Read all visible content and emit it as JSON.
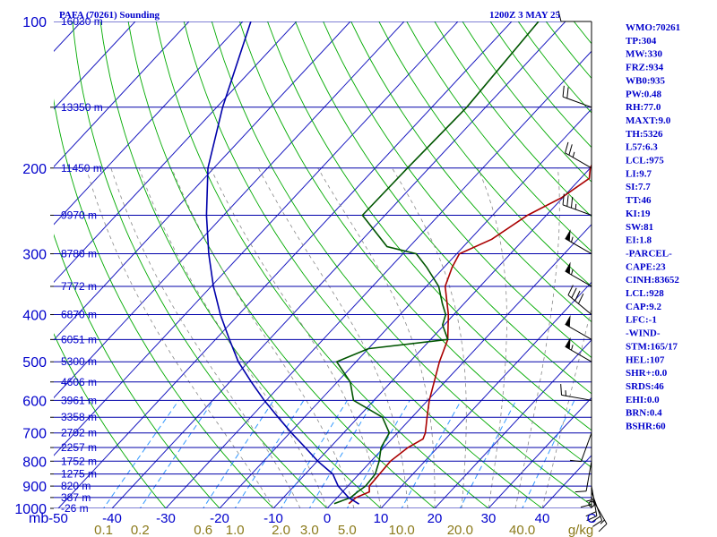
{
  "chart_data": {
    "type": "skew-t-log-p sounding",
    "title": "PAFA (70261) Sounding",
    "time": "1200Z  3 MAY 25",
    "y_axis_unit": "mb",
    "x_axis_unit": "C",
    "mixing_ratio_unit": "g/kg",
    "pressure_ticks": [
      100,
      200,
      300,
      400,
      500,
      600,
      700,
      800,
      900,
      1000
    ],
    "temperature_ticks": [
      -50,
      -40,
      -30,
      -20,
      -10,
      0,
      10,
      20,
      30,
      40
    ],
    "mixing_ratio_ticks": [
      0.1,
      0.2,
      0.6,
      1.0,
      2.0,
      3.0,
      5.0,
      10.0,
      20.0,
      40.0
    ],
    "mixing_ratio_labels": [
      "0.1",
      "0.2",
      "0.6",
      "1.0",
      "2.0",
      "3.0",
      "5.0",
      "10.0",
      "20.0",
      "40.0"
    ],
    "height_levels": [
      {
        "p": 100,
        "label": "16030 m"
      },
      {
        "p": 150,
        "label": "13350 m"
      },
      {
        "p": 200,
        "label": "11450 m"
      },
      {
        "p": 250,
        "label": "9970 m"
      },
      {
        "p": 300,
        "label": "8780 m"
      },
      {
        "p": 350,
        "label": "7772 m"
      },
      {
        "p": 400,
        "label": "6870 m"
      },
      {
        "p": 450,
        "label": "6051 m"
      },
      {
        "p": 500,
        "label": "5300 m"
      },
      {
        "p": 550,
        "label": "4606 m"
      },
      {
        "p": 600,
        "label": "3961 m"
      },
      {
        "p": 650,
        "label": "3358 m"
      },
      {
        "p": 700,
        "label": "2792 m"
      },
      {
        "p": 750,
        "label": "2257 m"
      },
      {
        "p": 800,
        "label": "1752 m"
      },
      {
        "p": 850,
        "label": "1275 m"
      },
      {
        "p": 900,
        "label": "820 m"
      },
      {
        "p": 950,
        "label": "387 m"
      },
      {
        "p": 1000,
        "label": "-26 m"
      }
    ],
    "series": [
      {
        "name": "Temperature",
        "color": "#aa0000",
        "points": [
          [
            978,
            3.2
          ],
          [
            950,
            3.5
          ],
          [
            925,
            5.0
          ],
          [
            900,
            4.0
          ],
          [
            850,
            3.8
          ],
          [
            800,
            3.6
          ],
          [
            750,
            4.5
          ],
          [
            720,
            5.8
          ],
          [
            700,
            5.2
          ],
          [
            650,
            2.8
          ],
          [
            600,
            0.3
          ],
          [
            550,
            -2.0
          ],
          [
            500,
            -4.5
          ],
          [
            450,
            -6.8
          ],
          [
            400,
            -11
          ],
          [
            350,
            -16.5
          ],
          [
            320,
            -18.5
          ],
          [
            300,
            -19.5
          ],
          [
            280,
            -16
          ],
          [
            250,
            -13.5
          ],
          [
            230,
            -10.2
          ],
          [
            210,
            -8.4
          ],
          [
            200,
            -10
          ],
          [
            180,
            -12
          ],
          [
            150,
            -13.5
          ],
          [
            130,
            -15
          ],
          [
            100,
            -19
          ]
        ]
      },
      {
        "name": "Dew point",
        "color": "#005500",
        "points": [
          [
            978,
            0.5
          ],
          [
            950,
            2.5
          ],
          [
            925,
            2.8
          ],
          [
            900,
            3.3
          ],
          [
            850,
            3.0
          ],
          [
            800,
            1.5
          ],
          [
            750,
            -0.5
          ],
          [
            700,
            -1.5
          ],
          [
            650,
            -5.5
          ],
          [
            600,
            -13.8
          ],
          [
            550,
            -17.6
          ],
          [
            500,
            -23.6
          ],
          [
            470,
            -20
          ],
          [
            450,
            -6.8
          ],
          [
            420,
            -10.3
          ],
          [
            400,
            -11.5
          ],
          [
            380,
            -14
          ],
          [
            350,
            -17.7
          ],
          [
            320,
            -23.2
          ],
          [
            300,
            -27.5
          ],
          [
            290,
            -34.2
          ],
          [
            250,
            -44.2
          ],
          [
            200,
            -44
          ],
          [
            150,
            -43.5
          ],
          [
            100,
            -45
          ]
        ]
      },
      {
        "name": "Parcel",
        "color": "#0000aa",
        "points": [
          [
            980,
            5.2
          ],
          [
            950,
            2.1
          ],
          [
            900,
            -1.8
          ],
          [
            850,
            -4.9
          ],
          [
            800,
            -9.9
          ],
          [
            750,
            -14.6
          ],
          [
            700,
            -19.7
          ],
          [
            650,
            -24.9
          ],
          [
            600,
            -30.4
          ],
          [
            550,
            -36
          ],
          [
            500,
            -41.9
          ],
          [
            450,
            -47.4
          ],
          [
            400,
            -53.4
          ],
          [
            350,
            -59.6
          ],
          [
            300,
            -66.1
          ],
          [
            250,
            -73.2
          ],
          [
            200,
            -81.1
          ],
          [
            150,
            -88.9
          ],
          [
            100,
            -98.5
          ]
        ]
      }
    ],
    "wind_barbs": [
      {
        "p": 980,
        "dir": 270,
        "kt": 0
      },
      {
        "p": 950,
        "dir": 150,
        "kt": 15
      },
      {
        "p": 925,
        "dir": 160,
        "kt": 20
      },
      {
        "p": 900,
        "dir": 170,
        "kt": 20
      },
      {
        "p": 850,
        "dir": 180,
        "kt": 15
      },
      {
        "p": 800,
        "dir": 190,
        "kt": 10
      },
      {
        "p": 700,
        "dir": 200,
        "kt": 10
      },
      {
        "p": 600,
        "dir": 280,
        "kt": 15
      },
      {
        "p": 500,
        "dir": 300,
        "kt": 55
      },
      {
        "p": 450,
        "dir": 300,
        "kt": 50
      },
      {
        "p": 400,
        "dir": 310,
        "kt": 40
      },
      {
        "p": 350,
        "dir": 300,
        "kt": 55
      },
      {
        "p": 300,
        "dir": 300,
        "kt": 55
      },
      {
        "p": 250,
        "dir": 290,
        "kt": 35
      },
      {
        "p": 200,
        "dir": 300,
        "kt": 25
      },
      {
        "p": 150,
        "dir": 290,
        "kt": 20
      },
      {
        "p": 100,
        "dir": 270,
        "kt": 10
      }
    ]
  },
  "indices": [
    "WMO:70261",
    "TP:304",
    "MW:330",
    "FRZ:934",
    "WB0:935",
    "PW:0.48",
    "RH:77.0",
    "MAXT:9.0",
    "TH:5326",
    "L57:6.3",
    "LCL:975",
    "LI:9.7",
    "SI:7.7",
    "TT:46",
    "KI:19",
    "SW:81",
    "EI:1.8",
    "-PARCEL-",
    "CAPE:23",
    "CINH:83652",
    "LCL:928",
    "CAP:9.2",
    "LFC:-1",
    "-WIND-",
    "STM:165/17",
    "HEL:107",
    "SHR+:0.0",
    "SRDS:46",
    "EHI:0.0",
    "BRN:0.4",
    "BSHR:60"
  ],
  "colors": {
    "isobar": "#0000aa",
    "isotherm": "#1a1ac0",
    "dry_adiabat": "#00aa00",
    "moist_adiabat": "#888888",
    "mixing_ratio": "#3399ff",
    "temperature": "#aa0000",
    "dewpoint": "#005500",
    "parcel": "#0000aa",
    "text": "#0000cc"
  }
}
